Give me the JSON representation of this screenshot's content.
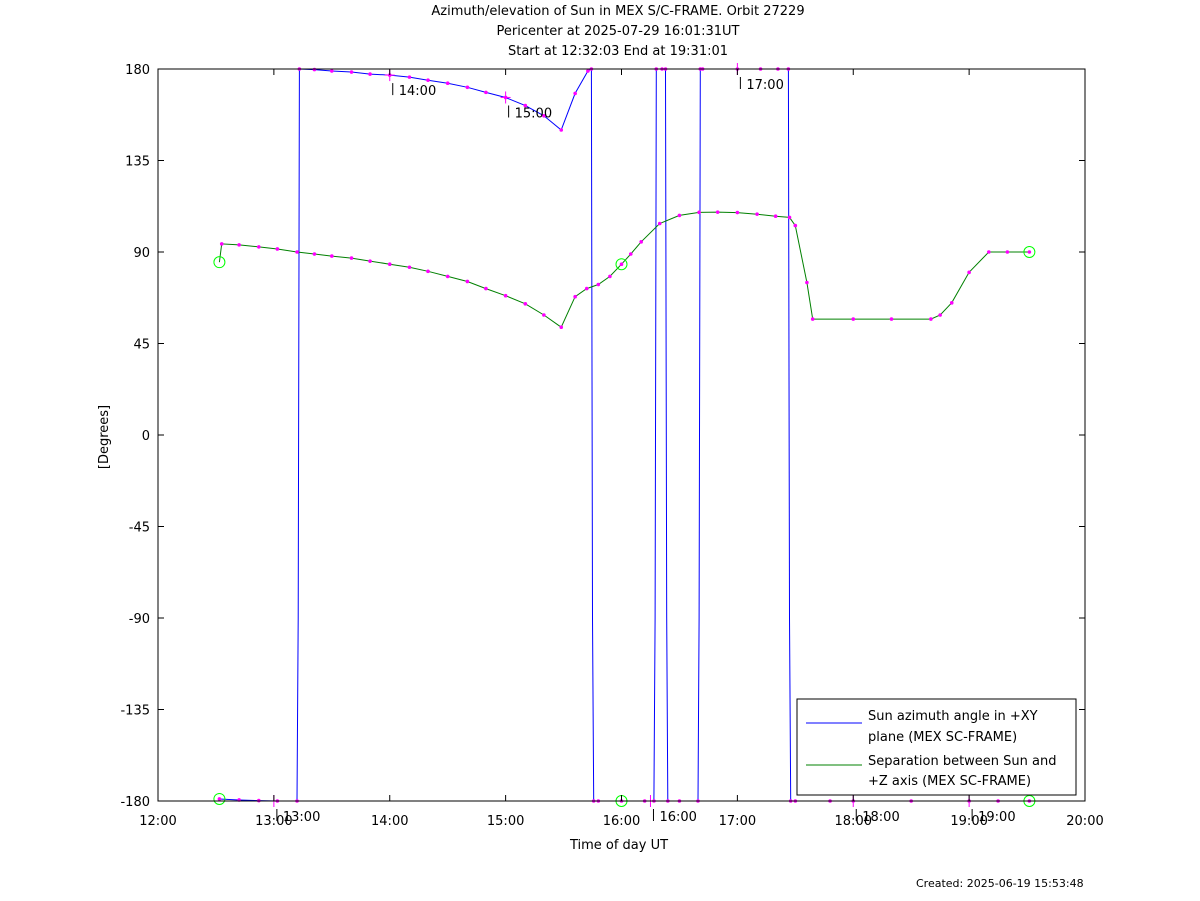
{
  "chart_data": {
    "type": "line",
    "title_lines": [
      "Azimuth/elevation of Sun in MEX S/C-FRAME.  Orbit 27229",
      "Pericenter at 2025-07-29 16:01:31UT",
      "Start at 12:32:03 End at 19:31:01"
    ],
    "xlabel": "Time of day UT",
    "ylabel": "[Degrees]",
    "xlim": [
      12.0,
      20.0
    ],
    "ylim": [
      -180,
      180
    ],
    "xticks": [
      {
        "value": 12,
        "label": "12:00"
      },
      {
        "value": 13,
        "label": "13:00"
      },
      {
        "value": 14,
        "label": "14:00"
      },
      {
        "value": 15,
        "label": "15:00"
      },
      {
        "value": 16,
        "label": "16:00"
      },
      {
        "value": 17,
        "label": "17:00"
      },
      {
        "value": 18,
        "label": "18:00"
      },
      {
        "value": 19,
        "label": "19:00"
      },
      {
        "value": 20,
        "label": "20:00"
      }
    ],
    "yticks": [
      {
        "value": 180,
        "label": "180"
      },
      {
        "value": 135,
        "label": "135"
      },
      {
        "value": 90,
        "label": "90"
      },
      {
        "value": 45,
        "label": "45"
      },
      {
        "value": 0,
        "label": "0"
      },
      {
        "value": -45,
        "label": "-45"
      },
      {
        "value": -90,
        "label": "-90"
      },
      {
        "value": -135,
        "label": "-135"
      },
      {
        "value": -180,
        "label": "-180"
      }
    ],
    "series": [
      {
        "name": "Sun azimuth angle in +XY plane (MEX SC-FRAME)",
        "legend_lines": [
          "Sun azimuth angle in +XY",
          "plane (MEX SC-FRAME)"
        ],
        "color": "#0000ff",
        "x": [
          12.53,
          12.7,
          12.87,
          13.03,
          13.2,
          13.21,
          13.22,
          13.35,
          13.5,
          13.67,
          13.83,
          14.0,
          14.17,
          14.33,
          14.5,
          14.67,
          14.83,
          15.0,
          15.17,
          15.33,
          15.48,
          15.6,
          15.71,
          15.74,
          15.75,
          15.76,
          15.8,
          16.0,
          16.2,
          16.28,
          16.29,
          16.3,
          16.35,
          16.38,
          16.39,
          16.4,
          16.5,
          16.66,
          16.67,
          16.68,
          16.7,
          17.0,
          17.2,
          17.35,
          17.44,
          17.45,
          17.46,
          17.5,
          17.8,
          18.0,
          18.5,
          19.0,
          19.25,
          19.52
        ],
        "y": [
          -179,
          -179.5,
          -179.8,
          -180,
          -180,
          -90,
          180,
          179.7,
          179,
          178.5,
          177.5,
          177,
          176,
          174.5,
          173,
          171,
          168.5,
          166,
          162,
          157,
          150,
          168,
          179,
          180,
          -90,
          -180,
          -180,
          -180,
          -180,
          -180,
          -90,
          180,
          180,
          180,
          -90,
          -180,
          -180,
          -180,
          -90,
          180,
          180,
          180,
          180,
          180,
          180,
          -90,
          -180,
          -180,
          -180,
          -180,
          -180,
          -180,
          -180,
          -180
        ]
      },
      {
        "name": "Separation between Sun and +Z axis (MEX SC-FRAME)",
        "legend_lines": [
          "Separation between Sun and",
          "+Z axis (MEX SC-FRAME)"
        ],
        "color": "#008000",
        "x": [
          12.53,
          12.55,
          12.7,
          12.87,
          13.03,
          13.2,
          13.35,
          13.5,
          13.67,
          13.83,
          14.0,
          14.17,
          14.33,
          14.5,
          14.67,
          14.83,
          15.0,
          15.17,
          15.33,
          15.48,
          15.6,
          15.7,
          15.8,
          15.9,
          16.0,
          16.08,
          16.17,
          16.33,
          16.5,
          16.67,
          16.83,
          17.0,
          17.17,
          17.33,
          17.45,
          17.5,
          17.6,
          17.65,
          18.0,
          18.33,
          18.67,
          18.75,
          18.85,
          19.0,
          19.17,
          19.33,
          19.52
        ],
        "y": [
          85,
          94,
          93.5,
          92.5,
          91.5,
          90,
          89,
          88,
          87,
          85.5,
          84,
          82.5,
          80.5,
          78,
          75.5,
          72,
          68.5,
          64.5,
          59,
          53,
          68,
          72,
          74,
          78,
          84,
          89,
          95,
          104,
          108,
          109.5,
          109.6,
          109.4,
          108.6,
          107.6,
          107,
          103,
          75,
          57,
          57,
          57,
          57,
          59,
          65,
          80,
          90,
          90,
          90
        ]
      }
    ],
    "time_markers": [
      {
        "x": 14.0,
        "label": "14:00",
        "angle": 177
      },
      {
        "x": 15.0,
        "label": "15:00",
        "angle": 166
      },
      {
        "x": 17.0,
        "label": "17:00",
        "angle": 180
      },
      {
        "x": 13.0,
        "label": "13:00",
        "angle": -180
      },
      {
        "x": 16.25,
        "label": "16:00",
        "angle": -180
      },
      {
        "x": 18.0,
        "label": "18:00",
        "angle": -180
      },
      {
        "x": 19.0,
        "label": "19:00",
        "angle": -180
      }
    ],
    "highlight_circles": [
      {
        "x": 12.53,
        "y": 85
      },
      {
        "x": 12.53,
        "y": -179
      },
      {
        "x": 16.0,
        "y": 84
      },
      {
        "x": 16.0,
        "y": -180
      },
      {
        "x": 19.52,
        "y": 90
      },
      {
        "x": 19.52,
        "y": -180
      }
    ],
    "colors": {
      "azimuth": "#0000ff",
      "separation": "#008000",
      "points": "#ff00ff",
      "circles": "#00ff00"
    },
    "legend_position": "bottom-right",
    "grid": false
  },
  "footer": {
    "created": "Created: 2025-06-19 15:53:48"
  }
}
